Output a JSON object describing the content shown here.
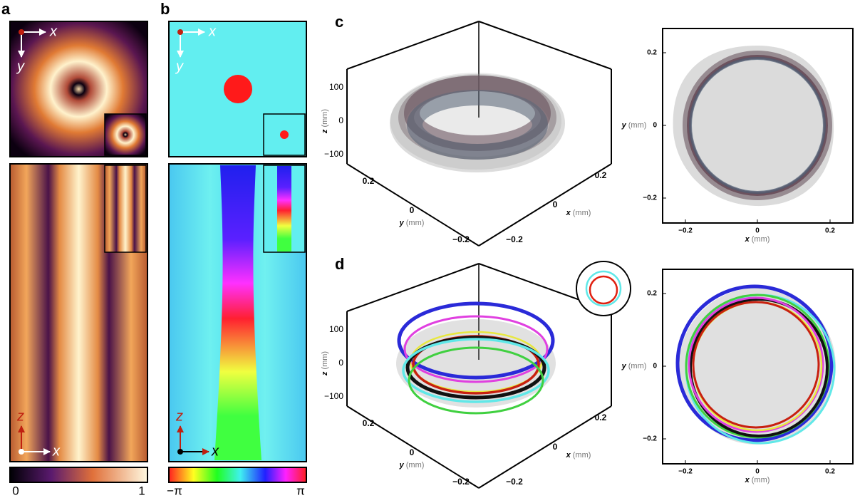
{
  "panels": [
    {
      "label": "a",
      "top_axes": {
        "h": "x",
        "v": "y"
      },
      "bottom_axes": {
        "v": "z",
        "h": "x"
      },
      "colorbar": {
        "min": "0",
        "max": "1"
      }
    },
    {
      "label": "b",
      "top_axes": {
        "h": "x",
        "v": "y"
      },
      "bottom_axes": {
        "v": "z",
        "h": "x"
      },
      "colorbar": {
        "min": "−π",
        "max": "π"
      }
    },
    {
      "label": "c",
      "box3d": {
        "z_ticks": [
          "100",
          "0",
          "−100"
        ],
        "y_ticks": [
          "0.2",
          "0",
          "−0.2"
        ],
        "x_ticks": [
          "0.2",
          "0",
          "−0.2"
        ],
        "z_label": {
          "var": "z",
          "unit": "(mm)"
        },
        "y_label": {
          "var": "y",
          "unit": "(mm)"
        },
        "x_label": {
          "var": "x",
          "unit": "(mm)"
        }
      },
      "plot2d": {
        "y_ticks": [
          "0.2",
          "0",
          "−0.2"
        ],
        "x_ticks": [
          "−0.2",
          "0",
          "0.2"
        ],
        "y_label": {
          "var": "y",
          "unit": "(mm)"
        },
        "x_label": {
          "var": "x",
          "unit": "(mm)"
        }
      }
    },
    {
      "label": "d",
      "box3d": {
        "z_ticks": [
          "100",
          "0",
          "−100"
        ],
        "y_ticks": [
          "0.2",
          "0",
          "−0.2"
        ],
        "x_ticks": [
          "0.2",
          "0",
          "−0.2"
        ],
        "z_label": {
          "var": "z",
          "unit": "(mm)"
        },
        "y_label": {
          "var": "y",
          "unit": "(mm)"
        },
        "x_label": {
          "var": "x",
          "unit": "(mm)"
        }
      },
      "plot2d": {
        "y_ticks": [
          "0.2",
          "0",
          "−0.2"
        ],
        "x_ticks": [
          "−0.2",
          "0",
          "0.2"
        ],
        "y_label": {
          "var": "y",
          "unit": "(mm)"
        },
        "x_label": {
          "var": "x",
          "unit": "(mm)"
        }
      }
    }
  ]
}
